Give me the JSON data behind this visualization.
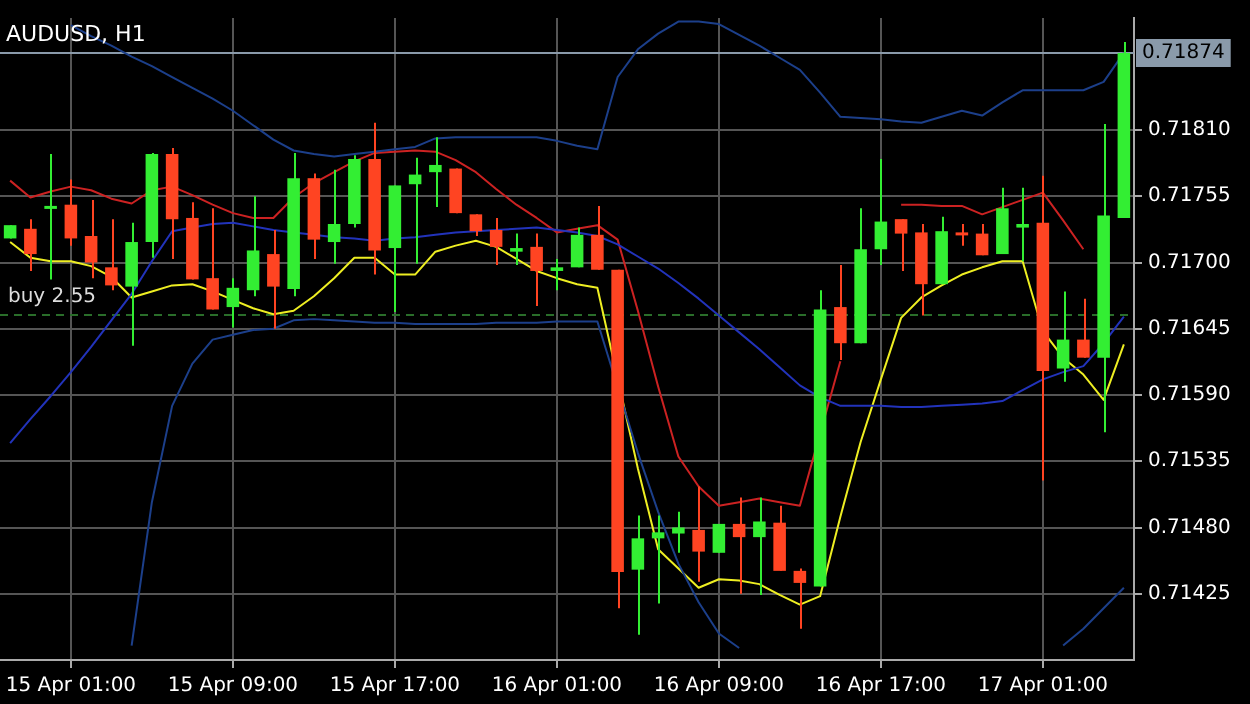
{
  "chart_data": {
    "type": "candlestick",
    "title": "AUDUSD, H1",
    "categories": [
      null,
      null,
      null,
      "15 Apr 01:00",
      null,
      null,
      null,
      null,
      null,
      null,
      null,
      "15 Apr 09:00",
      null,
      null,
      null,
      null,
      null,
      null,
      null,
      "15 Apr 17:00",
      null,
      null,
      null,
      null,
      null,
      null,
      null,
      "16 Apr 01:00",
      null,
      null,
      null,
      null,
      null,
      null,
      null,
      "16 Apr 09:00",
      null,
      null,
      null,
      null,
      null,
      null,
      null,
      "16 Apr 17:00",
      null,
      null,
      null,
      null,
      null,
      null,
      null,
      "17 Apr 01:00",
      null,
      null,
      null,
      null
    ],
    "ohlc": [
      [
        0.7172,
        0.71731,
        0.7172,
        0.71731
      ],
      [
        0.71728,
        0.71736,
        0.71693,
        0.71707
      ],
      [
        0.71746,
        0.7179,
        0.71686,
        0.71747
      ],
      [
        0.71748,
        0.71769,
        0.71714,
        0.7172
      ],
      [
        0.71722,
        0.71752,
        0.71687,
        0.717
      ],
      [
        0.71696,
        0.71736,
        0.71677,
        0.71681
      ],
      [
        0.7168,
        0.71733,
        0.71631,
        0.71717
      ],
      [
        0.71717,
        0.71791,
        0.71704,
        0.7179
      ],
      [
        0.7179,
        0.71795,
        0.71703,
        0.71736
      ],
      [
        0.71737,
        0.7175,
        0.71686,
        0.71686
      ],
      [
        0.71687,
        0.71745,
        0.71661,
        0.71661
      ],
      [
        0.71663,
        0.71687,
        0.71646,
        0.71679
      ],
      [
        0.71677,
        0.71755,
        0.71672,
        0.7171
      ],
      [
        0.71707,
        0.71727,
        0.71645,
        0.7168
      ],
      [
        0.71678,
        0.71791,
        0.71672,
        0.7177
      ],
      [
        0.7177,
        0.71774,
        0.71703,
        0.71719
      ],
      [
        0.71717,
        0.71777,
        0.71699,
        0.71732
      ],
      [
        0.71732,
        0.71789,
        0.71729,
        0.71786
      ],
      [
        0.71786,
        0.71816,
        0.7169,
        0.7171
      ],
      [
        0.71712,
        0.71764,
        0.71659,
        0.71764
      ],
      [
        0.71765,
        0.71787,
        0.71699,
        0.71773
      ],
      [
        0.71775,
        0.71804,
        0.71746,
        0.71781
      ],
      [
        0.71778,
        0.71778,
        0.71741,
        0.71741
      ],
      [
        0.7174,
        0.7174,
        0.71722,
        0.71726
      ],
      [
        0.71727,
        0.71737,
        0.71698,
        0.71713
      ],
      [
        0.71709,
        0.71724,
        0.71698,
        0.71712
      ],
      [
        0.71713,
        0.71724,
        0.71664,
        0.71693
      ],
      [
        0.71693,
        0.71703,
        0.71677,
        0.71696
      ],
      [
        0.71696,
        0.71729,
        0.71696,
        0.71723
      ],
      [
        0.71723,
        0.71747,
        0.71694,
        0.71694
      ],
      [
        0.71694,
        0.71694,
        0.71413,
        0.71443
      ],
      [
        0.71445,
        0.7149,
        0.71391,
        0.71471
      ],
      [
        0.71471,
        0.7149,
        0.71417,
        0.71476
      ],
      [
        0.71475,
        0.71493,
        0.71459,
        0.7148
      ],
      [
        0.71478,
        0.71514,
        0.71435,
        0.7146
      ],
      [
        0.71459,
        0.71483,
        0.71459,
        0.71483
      ],
      [
        0.71483,
        0.71505,
        0.71425,
        0.71472
      ],
      [
        0.71472,
        0.71505,
        0.71424,
        0.71485
      ],
      [
        0.71484,
        0.71498,
        0.71444,
        0.71444
      ],
      [
        0.71444,
        0.71446,
        0.71396,
        0.71434
      ],
      [
        0.71431,
        0.71677,
        0.71431,
        0.71661
      ],
      [
        0.71663,
        0.71698,
        0.71619,
        0.71633
      ],
      [
        0.71633,
        0.71745,
        0.71633,
        0.71711
      ],
      [
        0.71711,
        0.71786,
        0.71698,
        0.71734
      ],
      [
        0.71736,
        0.71736,
        0.71693,
        0.71724
      ],
      [
        0.71725,
        0.71732,
        0.71656,
        0.71682
      ],
      [
        0.71682,
        0.71738,
        0.71682,
        0.71726
      ],
      [
        0.71725,
        0.71732,
        0.71714,
        0.71723
      ],
      [
        0.71724,
        0.71732,
        0.71706,
        0.71706
      ],
      [
        0.71707,
        0.71762,
        0.71707,
        0.71745
      ],
      [
        0.71729,
        0.71762,
        0.71701,
        0.71732
      ],
      [
        0.71733,
        0.71772,
        0.71519,
        0.7161
      ],
      [
        0.71612,
        0.71676,
        0.71601,
        0.71636
      ],
      [
        0.71636,
        0.7167,
        0.71621,
        0.71621
      ],
      [
        0.71621,
        0.71815,
        0.71559,
        0.71739
      ],
      [
        0.71737,
        0.71883,
        0.71737,
        0.71874
      ]
    ],
    "colors": [
      "#33ee33",
      "#ff4422",
      "#33ee33",
      "#ff4422",
      "#ff4422",
      "#ff4422",
      "#33ee33",
      "#33ee33",
      "#ff4422",
      "#ff4422",
      "#ff4422",
      "#33ee33",
      "#33ee33",
      "#ff4422",
      "#33ee33",
      "#ff4422",
      "#33ee33",
      "#33ee33",
      "#ff4422",
      "#33ee33",
      "#33ee33",
      "#33ee33",
      "#ff4422",
      "#ff4422",
      "#ff4422",
      "#33ee33",
      "#ff4422",
      "#33ee33",
      "#33ee33",
      "#ff4422",
      "#ff4422",
      "#33ee33",
      "#33ee33",
      "#33ee33",
      "#ff4422",
      "#33ee33",
      "#ff4422",
      "#33ee33",
      "#ff4422",
      "#ff4422",
      "#33ee33",
      "#ff4422",
      "#33ee33",
      "#33ee33",
      "#ff4422",
      "#ff4422",
      "#33ee33",
      "#ff4422",
      "#ff4422",
      "#33ee33",
      "#33ee33",
      "#ff4422",
      "#33ee33",
      "#ff4422",
      "#33ee33",
      "#33ee33"
    ],
    "series": [
      {
        "type": "line",
        "color": "#1c3f8a",
        "values": [
          null,
          null,
          null,
          0.71897,
          0.71888,
          0.7188,
          0.71871,
          0.71863,
          0.71854,
          0.71845,
          0.71836,
          0.71826,
          0.71814,
          0.71802,
          0.71793,
          0.7179,
          0.71788,
          0.7179,
          0.71792,
          0.71794,
          0.71796,
          0.71803,
          0.71804,
          0.71804,
          0.71804,
          0.71804,
          0.71804,
          0.71801,
          0.71797,
          0.71794,
          0.71854,
          0.71877,
          0.7189,
          0.719,
          0.719,
          0.71898,
          0.71889,
          0.7188,
          0.7187,
          0.7186,
          0.71841,
          0.71821,
          0.7182,
          0.71819,
          0.71817,
          0.71816,
          0.71821,
          0.71826,
          0.71822,
          0.71833,
          0.71843,
          0.71843,
          0.71843,
          0.71843,
          0.7185,
          0.71874
        ]
      },
      {
        "type": "line",
        "color": "#2233bb",
        "values": [
          0.7155,
          0.7157,
          0.71589,
          0.71609,
          0.7163,
          0.71652,
          0.71674,
          0.71701,
          0.71726,
          0.71729,
          0.71732,
          0.71733,
          0.7173,
          0.71727,
          0.71725,
          0.71723,
          0.71721,
          0.7172,
          0.71718,
          0.7172,
          0.71721,
          0.71723,
          0.71725,
          0.71726,
          0.71727,
          0.71728,
          0.71729,
          0.71727,
          0.71725,
          0.71722,
          0.71715,
          0.71705,
          0.71695,
          0.71683,
          0.7167,
          0.71656,
          0.71642,
          0.71628,
          0.71613,
          0.71598,
          0.71588,
          0.71581,
          0.71581,
          0.71581,
          0.7158,
          0.7158,
          0.71581,
          0.71582,
          0.71583,
          0.71585,
          0.71594,
          0.71603,
          0.71609,
          0.71614,
          0.71633,
          0.71655
        ]
      },
      {
        "type": "line",
        "color": "#1c3f8a",
        "values": [
          null,
          null,
          null,
          null,
          null,
          null,
          0.71382,
          0.71501,
          0.71581,
          0.71616,
          0.71636,
          0.7164,
          0.71644,
          0.71645,
          0.71652,
          0.71653,
          0.71652,
          0.71651,
          0.7165,
          0.7165,
          0.71649,
          0.71649,
          0.71649,
          0.71649,
          0.7165,
          0.7165,
          0.7165,
          0.71651,
          0.71651,
          0.71651,
          null,
          0.71542,
          0.71493,
          0.7145,
          0.71418,
          0.71392,
          0.7138,
          null,
          null,
          null,
          null,
          null,
          null,
          null,
          null,
          null,
          null,
          null,
          null,
          null,
          null,
          null,
          0.71382,
          0.71396,
          0.71413,
          0.7143
        ]
      },
      {
        "type": "line",
        "color": "#cc2222",
        "values": [
          0.71768,
          0.71754,
          0.71759,
          0.71763,
          0.7176,
          0.71753,
          0.71749,
          0.7176,
          0.71763,
          0.71756,
          0.71748,
          0.71741,
          0.71737,
          0.71737,
          0.71754,
          0.71766,
          0.71775,
          0.71784,
          0.71791,
          0.71792,
          0.71793,
          0.71792,
          0.71785,
          0.71775,
          0.71761,
          0.71748,
          0.71737,
          0.71725,
          0.71728,
          0.71731,
          0.71719,
          0.7166,
          0.71597,
          0.71539,
          0.71514,
          0.71498,
          0.71501,
          0.71504,
          0.71501,
          0.71498,
          null,
          0.71618,
          null,
          null,
          0.71748,
          0.71748,
          0.71747,
          0.71747,
          0.7174,
          0.71746,
          0.71752,
          0.71758,
          0.71735,
          0.71711,
          null,
          null
        ]
      },
      {
        "type": "line",
        "color": "#eeee22",
        "values": [
          0.71717,
          0.71704,
          0.71701,
          0.71701,
          0.71697,
          0.71688,
          0.71671,
          0.71676,
          0.71681,
          0.71682,
          0.71676,
          0.71669,
          0.71662,
          0.71657,
          0.7166,
          0.71672,
          0.71687,
          0.71704,
          0.71704,
          0.7169,
          0.7169,
          0.71709,
          0.71714,
          0.71718,
          0.71713,
          0.71703,
          0.71693,
          0.71687,
          0.71682,
          0.71679,
          null,
          0.71529,
          0.71462,
          0.71446,
          0.7143,
          0.71437,
          0.71436,
          0.71433,
          0.71424,
          0.71416,
          0.71423,
          0.71489,
          0.71551,
          0.71603,
          0.71654,
          0.71671,
          0.71681,
          0.7169,
          0.71696,
          0.71701,
          0.71701,
          0.71643,
          0.71621,
          0.71607,
          0.71586,
          0.71632
        ]
      }
    ],
    "ylim": [
      0.7137,
      0.71903
    ],
    "yticks": [
      {
        "value": 0.71425,
        "label": "0.71425"
      },
      {
        "value": 0.7148,
        "label": "0.71480"
      },
      {
        "value": 0.71535,
        "label": "0.71535"
      },
      {
        "value": 0.7159,
        "label": "0.71590"
      },
      {
        "value": 0.71645,
        "label": "0.71645"
      },
      {
        "value": 0.717,
        "label": "0.71700"
      },
      {
        "value": 0.71755,
        "label": "0.71755"
      },
      {
        "value": 0.7181,
        "label": "0.71810"
      }
    ],
    "ref_lines": [
      {
        "axis": "y",
        "value": 0.71658,
        "label": "buy 2.55",
        "color": "#2a6e2a",
        "line_style": "dashed"
      },
      {
        "axis": "y",
        "value": 0.71874,
        "label": "0.71874",
        "color": "#8a9aaa",
        "line_style": "solid"
      }
    ],
    "grid": true,
    "legend": false
  }
}
